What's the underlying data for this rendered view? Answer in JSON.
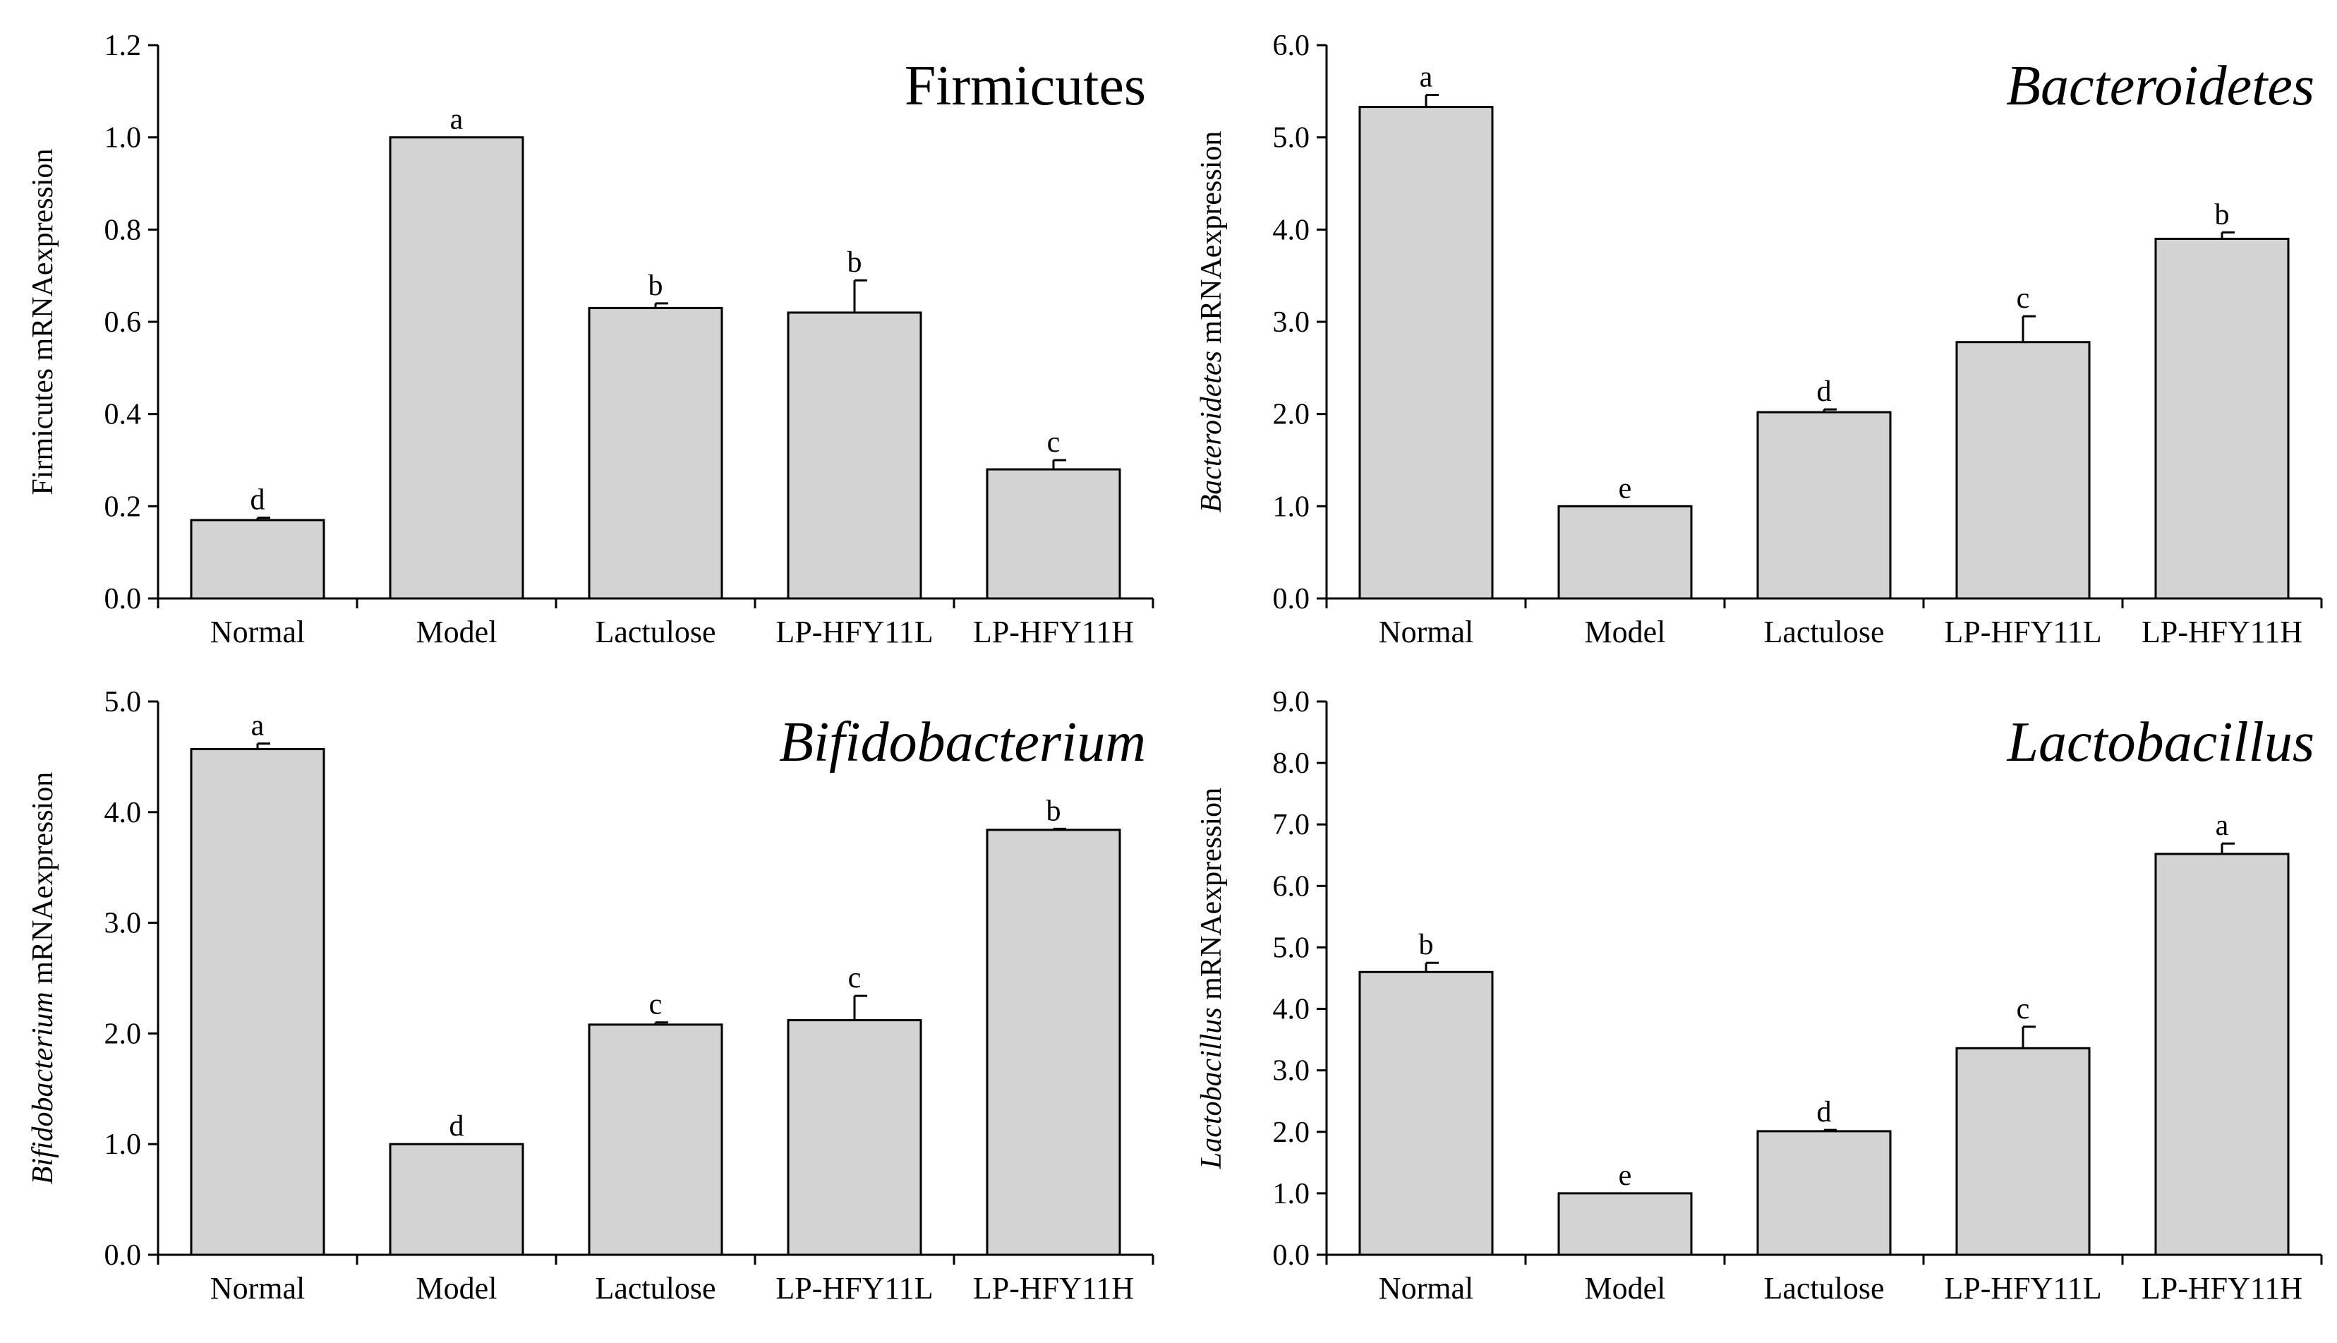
{
  "style": {
    "bar_fill": "#d3d3d3",
    "bar_stroke": "#000000",
    "axis_color": "#000000"
  },
  "chart_data": [
    {
      "type": "bar",
      "title": "Firmicutes",
      "title_italic": false,
      "ylabel": "Firmicutes mRNAexpression",
      "ylabel_italic_part": "",
      "ylabel_rest": "Firmicutes mRNAexpression",
      "categories": [
        "Normal",
        "Model",
        "Lactulose",
        "LP-HFY11L",
        "LP-HFY11H"
      ],
      "values": [
        0.17,
        1.0,
        0.63,
        0.62,
        0.28
      ],
      "errors": [
        0.005,
        0.0,
        0.01,
        0.07,
        0.02
      ],
      "letters": [
        "d",
        "a",
        "b",
        "b",
        "c"
      ],
      "ylim": [
        0,
        1.2
      ],
      "yticks": [
        0,
        0.2,
        0.4,
        0.6,
        0.8,
        1.0,
        1.2
      ],
      "ytick_labels": [
        "0.0",
        "0.2",
        "0.4",
        "0.6",
        "0.8",
        "1.0",
        "1.2"
      ]
    },
    {
      "type": "bar",
      "title": "Bacteroidetes",
      "title_italic": true,
      "ylabel": "Bacteroidetes mRNAexpression",
      "ylabel_italic_part": "Bacteroidetes",
      "ylabel_rest": " mRNAexpression",
      "categories": [
        "Normal",
        "Model",
        "Lactulose",
        "LP-HFY11L",
        "LP-HFY11H"
      ],
      "values": [
        5.33,
        1.0,
        2.02,
        2.78,
        3.9
      ],
      "errors": [
        0.13,
        0.0,
        0.03,
        0.28,
        0.07
      ],
      "letters": [
        "a",
        "e",
        "d",
        "c",
        "b"
      ],
      "ylim": [
        0,
        6
      ],
      "yticks": [
        0,
        1,
        2,
        3,
        4,
        5,
        6
      ],
      "ytick_labels": [
        "0.0",
        "1.0",
        "2.0",
        "3.0",
        "4.0",
        "5.0",
        "6.0"
      ]
    },
    {
      "type": "bar",
      "title": "Bifidobacterium",
      "title_italic": true,
      "ylabel": "Bifidobacterium mRNAexpression",
      "ylabel_italic_part": "Bifidobacterium",
      "ylabel_rest": " mRNAexpression",
      "categories": [
        "Normal",
        "Model",
        "Lactulose",
        "LP-HFY11L",
        "LP-HFY11H"
      ],
      "values": [
        4.57,
        1.0,
        2.08,
        2.12,
        3.84
      ],
      "errors": [
        0.05,
        0.0,
        0.02,
        0.22,
        0.01
      ],
      "letters": [
        "a",
        "d",
        "c",
        "c",
        "b"
      ],
      "ylim": [
        0,
        5
      ],
      "yticks": [
        0,
        1,
        2,
        3,
        4,
        5
      ],
      "ytick_labels": [
        "0.0",
        "1.0",
        "2.0",
        "3.0",
        "4.0",
        "5.0"
      ]
    },
    {
      "type": "bar",
      "title": "Lactobacillus",
      "title_italic": true,
      "ylabel": "Lactobacillus mRNAexpression",
      "ylabel_italic_part": "Lactobacillus",
      "ylabel_rest": " mRNAexpression",
      "categories": [
        "Normal",
        "Model",
        "Lactulose",
        "LP-HFY11L",
        "LP-HFY11H"
      ],
      "values": [
        4.6,
        1.0,
        2.01,
        3.36,
        6.52
      ],
      "errors": [
        0.15,
        0.0,
        0.02,
        0.35,
        0.17
      ],
      "letters": [
        "b",
        "e",
        "d",
        "c",
        "a"
      ],
      "ylim": [
        0,
        9
      ],
      "yticks": [
        0,
        1,
        2,
        3,
        4,
        5,
        6,
        7,
        8,
        9
      ],
      "ytick_labels": [
        "0.0",
        "1.0",
        "2.0",
        "3.0",
        "4.0",
        "5.0",
        "6.0",
        "7.0",
        "8.0",
        "9.0"
      ]
    }
  ]
}
